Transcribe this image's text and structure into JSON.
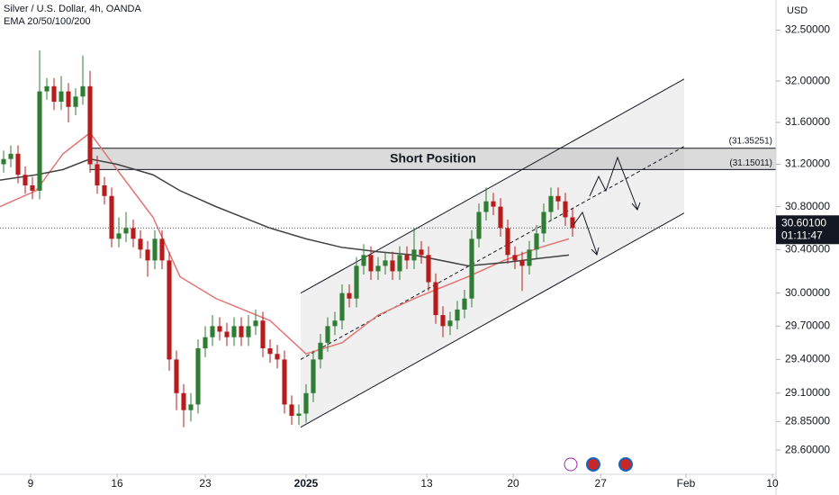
{
  "chart_data": {
    "type": "candlestick",
    "title": "Silver / U.S. Dollar, 4h, OANDA",
    "subtitle": "EMA 20/50/100/200",
    "y_unit": "USD",
    "log": true,
    "up_color": "#2e7d32",
    "down_color": "#b71c1c",
    "x": [
      0,
      1,
      2,
      3,
      4,
      5,
      6,
      7,
      8,
      9,
      10,
      11,
      12,
      13,
      14,
      15,
      16,
      17,
      18,
      19,
      20,
      21,
      22,
      23,
      24,
      25,
      26,
      27,
      28,
      29,
      30,
      31,
      32,
      33,
      34,
      35,
      36,
      37,
      38,
      39,
      40,
      41,
      42,
      43,
      44,
      45,
      46,
      47,
      48,
      49,
      50,
      51,
      52,
      53,
      54,
      55,
      56,
      57,
      58,
      59,
      60,
      61,
      62,
      63,
      64,
      65,
      66,
      67,
      68,
      69,
      70,
      71,
      72,
      73,
      74,
      75,
      76,
      77,
      78,
      79
    ],
    "open": [
      31.2,
      31.25,
      31.3,
      31.1,
      31.0,
      30.95,
      31.9,
      31.95,
      31.8,
      31.9,
      31.75,
      31.85,
      31.95,
      31.2,
      31.0,
      30.9,
      30.5,
      30.55,
      30.6,
      30.5,
      30.4,
      30.3,
      30.5,
      30.3,
      29.4,
      29.1,
      28.95,
      29.0,
      29.5,
      29.6,
      29.7,
      29.65,
      29.6,
      29.7,
      29.6,
      29.7,
      29.75,
      29.5,
      29.45,
      29.4,
      29.0,
      28.9,
      28.92,
      29.1,
      29.4,
      29.55,
      29.7,
      29.75,
      30.0,
      29.95,
      30.25,
      30.35,
      30.2,
      30.25,
      30.3,
      30.2,
      30.35,
      30.3,
      30.4,
      30.35,
      30.1,
      29.8,
      29.7,
      29.75,
      29.85,
      29.95,
      30.5,
      30.75,
      30.85,
      30.8,
      30.6,
      30.35,
      30.3,
      30.25,
      30.4,
      30.55,
      30.75,
      30.9,
      30.85,
      30.7
    ],
    "high": [
      31.33,
      31.38,
      31.38,
      31.18,
      31.08,
      32.3,
      32.03,
      32.03,
      32.05,
      31.98,
      31.93,
      32.25,
      32.1,
      31.28,
      31.08,
      30.98,
      30.7,
      30.75,
      30.68,
      30.58,
      30.48,
      30.58,
      30.58,
      30.38,
      29.48,
      29.18,
      29.1,
      29.58,
      29.7,
      29.8,
      29.78,
      29.73,
      29.78,
      29.78,
      29.8,
      29.85,
      29.83,
      29.58,
      29.53,
      29.48,
      29.08,
      29.0,
      29.18,
      29.48,
      29.63,
      29.78,
      29.83,
      30.08,
      30.08,
      30.33,
      30.45,
      30.43,
      30.33,
      30.38,
      30.38,
      30.43,
      30.43,
      30.6,
      30.48,
      30.43,
      30.18,
      29.88,
      29.83,
      29.93,
      30.03,
      30.58,
      30.83,
      30.98,
      30.93,
      30.88,
      30.68,
      30.43,
      30.38,
      30.48,
      30.63,
      30.83,
      30.98,
      30.98,
      30.93,
      30.78
    ],
    "low": [
      31.12,
      31.17,
      31.02,
      30.92,
      30.87,
      30.87,
      31.82,
      31.72,
      31.72,
      31.6,
      31.67,
      31.77,
      31.12,
      30.92,
      30.82,
      30.42,
      30.42,
      30.47,
      30.42,
      30.32,
      30.15,
      30.22,
      30.22,
      29.3,
      28.95,
      28.8,
      28.85,
      28.92,
      29.42,
      29.52,
      29.57,
      29.52,
      29.52,
      29.52,
      29.52,
      29.62,
      29.42,
      29.37,
      29.32,
      28.92,
      28.82,
      28.82,
      28.84,
      29.02,
      29.32,
      29.47,
      29.62,
      29.67,
      29.87,
      29.87,
      30.17,
      30.12,
      30.12,
      30.17,
      30.12,
      30.12,
      30.22,
      30.22,
      30.27,
      30.02,
      29.72,
      29.6,
      29.62,
      29.67,
      29.77,
      29.87,
      30.42,
      30.67,
      30.72,
      30.52,
      30.27,
      30.22,
      30.02,
      30.17,
      30.32,
      30.47,
      30.67,
      30.77,
      30.62,
      30.52
    ],
    "close": [
      31.25,
      31.3,
      31.1,
      31.0,
      30.95,
      31.9,
      31.95,
      31.8,
      31.9,
      31.75,
      31.85,
      31.95,
      31.2,
      31.0,
      30.9,
      30.5,
      30.55,
      30.6,
      30.5,
      30.4,
      30.3,
      30.5,
      30.3,
      29.4,
      29.1,
      28.95,
      29.0,
      29.5,
      29.6,
      29.7,
      29.65,
      29.6,
      29.7,
      29.6,
      29.7,
      29.75,
      29.5,
      29.45,
      29.4,
      29.0,
      28.9,
      28.92,
      29.1,
      29.4,
      29.55,
      29.7,
      29.75,
      30.0,
      29.95,
      30.25,
      30.35,
      30.2,
      30.25,
      30.3,
      30.2,
      30.35,
      30.3,
      30.4,
      30.35,
      30.1,
      29.8,
      29.7,
      29.75,
      29.85,
      29.95,
      30.5,
      30.75,
      30.85,
      30.8,
      30.6,
      30.35,
      30.3,
      30.25,
      30.4,
      30.55,
      30.75,
      30.9,
      30.85,
      30.7,
      30.6
    ],
    "ema": {
      "x": [
        -0.5,
        4.5,
        8.25,
        12,
        15.75,
        20.75,
        24.5,
        29.5,
        37,
        42,
        47,
        52,
        57,
        60.75,
        64.5,
        69.5,
        74.5,
        78.5
      ],
      "series": [
        {
          "color": "#e57373",
          "values": [
            30.8,
            30.95,
            31.3,
            31.5,
            31.15,
            30.7,
            30.15,
            29.95,
            29.75,
            29.45,
            29.55,
            29.8,
            29.95,
            30.05,
            30.15,
            30.3,
            30.42,
            30.5
          ]
        },
        {
          "color": "#424242",
          "values": [
            31.05,
            31.1,
            31.15,
            31.25,
            31.2,
            31.1,
            30.95,
            30.8,
            30.6,
            30.5,
            30.42,
            30.38,
            30.35,
            30.3,
            30.25,
            30.28,
            30.32,
            30.35
          ]
        }
      ]
    },
    "channel": {
      "x": [
        41.25,
        94.5
      ],
      "upper": [
        30.0,
        32.02
      ],
      "middle": [
        29.4,
        31.37
      ],
      "lower": [
        28.8,
        30.74
      ]
    },
    "zone": {
      "label": "Short Position",
      "x_start": 12,
      "top": 31.35251,
      "bottom": 31.15011,
      "top_label": "(31.35251)",
      "bottom_label": "(31.15011)"
    },
    "last_price": 30.601,
    "last_price_label": "30.60100",
    "countdown": "01:11:47",
    "xlim": [
      -0.5,
      107.25
    ],
    "xticks": [
      {
        "value": 3.75,
        "label": "9"
      },
      {
        "value": 15.75,
        "label": "16"
      },
      {
        "value": 28,
        "label": "23"
      },
      {
        "value": 42,
        "label": "2025"
      },
      {
        "value": 58.75,
        "label": "13"
      },
      {
        "value": 70.75,
        "label": "20"
      },
      {
        "value": 82.9,
        "label": "27"
      },
      {
        "value": 94.75,
        "label": "Feb"
      },
      {
        "value": 106.75,
        "label": "10"
      }
    ],
    "ylim": [
      28.39,
      32.8
    ],
    "yticks": [
      {
        "value": 32.5,
        "label": "32.50000"
      },
      {
        "value": 32.0,
        "label": "32.00000"
      },
      {
        "value": 31.6,
        "label": "31.60000"
      },
      {
        "value": 31.2,
        "label": "31.20000"
      },
      {
        "value": 30.8,
        "label": "30.80000"
      },
      {
        "value": 30.4,
        "label": "30.40000"
      },
      {
        "value": 30.0,
        "label": "30.00000"
      },
      {
        "value": 29.7,
        "label": "29.70000"
      },
      {
        "value": 29.4,
        "label": "29.40000"
      },
      {
        "value": 29.1,
        "label": "29.10000"
      },
      {
        "value": 28.85,
        "label": "28.85000"
      },
      {
        "value": 28.6,
        "label": "28.60000"
      }
    ]
  }
}
